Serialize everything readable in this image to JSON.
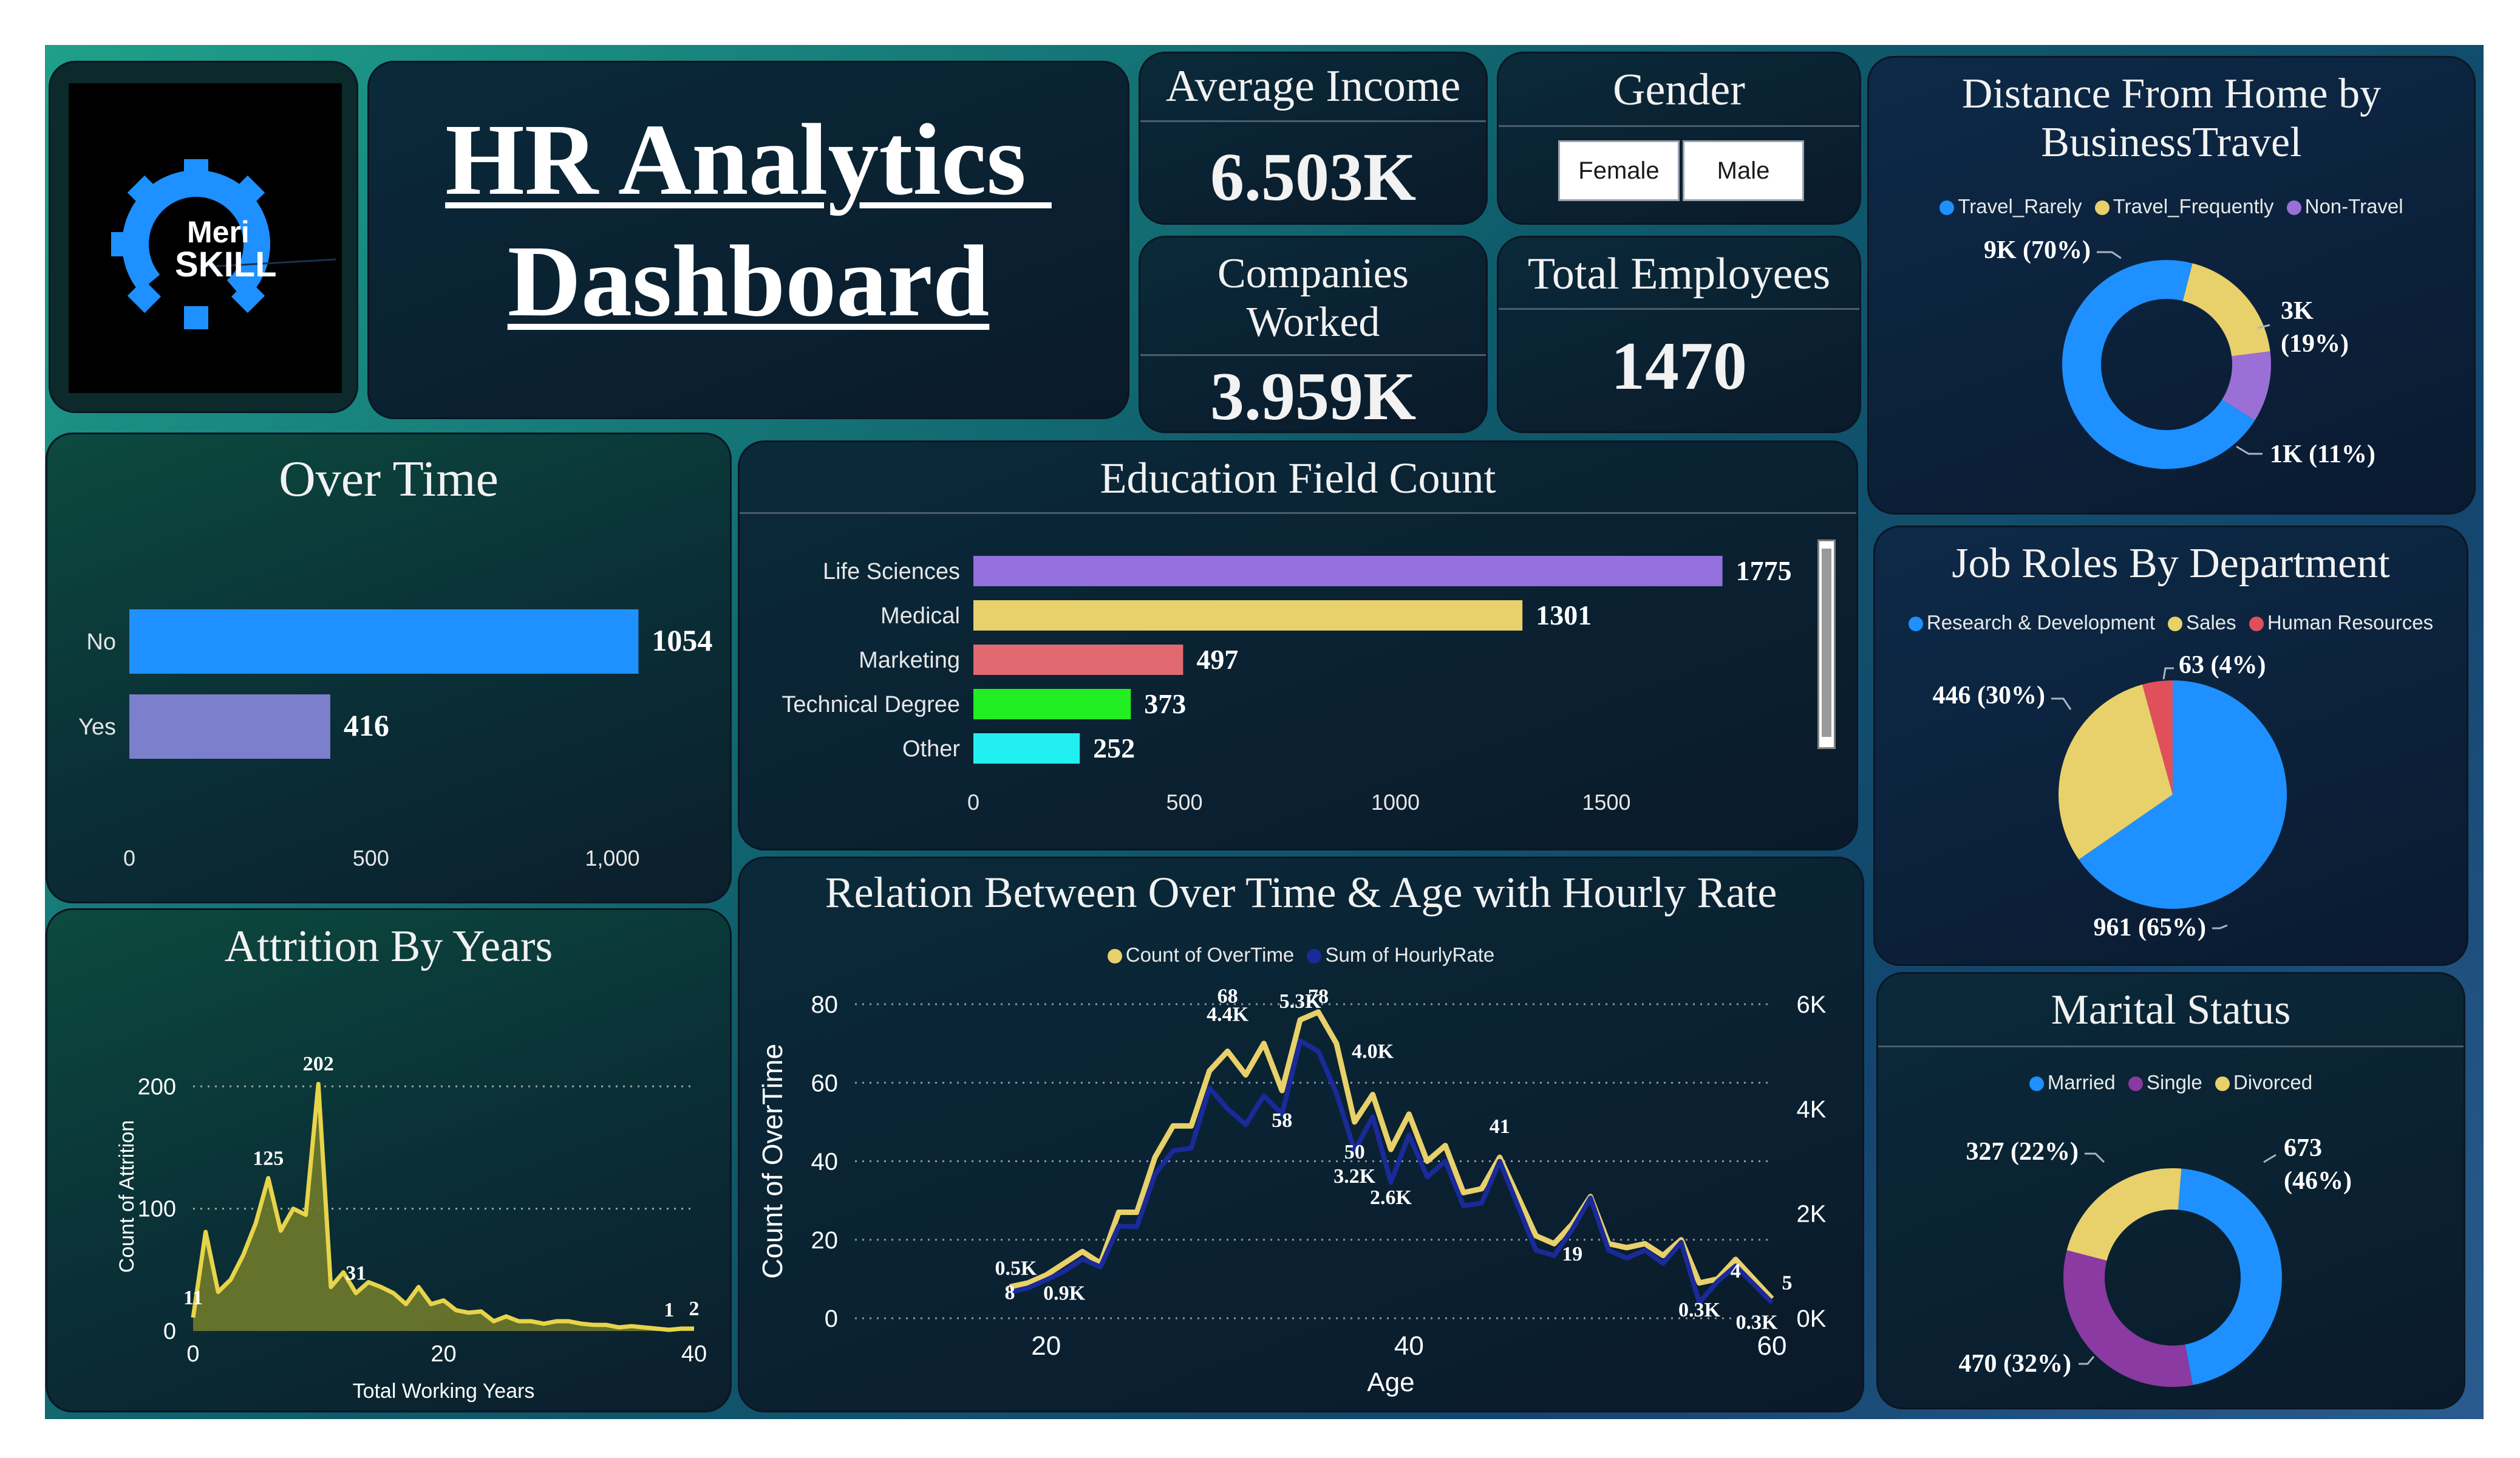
{
  "header": {
    "title_line1": "HR Analytics ",
    "title_line2": "Dashboard"
  },
  "logo": {
    "line1": "Meri",
    "line2": "SKILL"
  },
  "kpis": {
    "avg_income": {
      "label": "Average Income",
      "value": "6.503K"
    },
    "gender": {
      "label": "Gender",
      "options": [
        "Female",
        "Male"
      ]
    },
    "companies": {
      "label_line1": "Companies",
      "label_line2": "Worked",
      "value": "3.959K"
    },
    "employees": {
      "label": "Total Employees",
      "value": "1470"
    }
  },
  "colors": {
    "blue": "#1e90ff",
    "yellow": "#e8d06a",
    "purple": "#9a70d6",
    "red": "#e0505a",
    "navy": "#1a2a9a",
    "olive": "#6f7a2a"
  },
  "chart_data": [
    {
      "id": "overtime",
      "type": "bar",
      "orientation": "horizontal",
      "title": "Over Time",
      "categories": [
        "No",
        "Yes"
      ],
      "values": [
        1054,
        416
      ],
      "value_labels": [
        "1054",
        "416"
      ],
      "xlim": [
        0,
        1100
      ],
      "xticks": [
        0,
        500,
        1000
      ],
      "xtick_labels": [
        "0",
        "500",
        "1,000"
      ],
      "colors": [
        "#1e90ff",
        "#7b7fcc"
      ]
    },
    {
      "id": "education",
      "type": "bar",
      "orientation": "horizontal",
      "title": "Education Field Count",
      "categories": [
        "Life Sciences",
        "Medical",
        "Marketing",
        "Technical Degree",
        "Other"
      ],
      "values": [
        1775,
        1301,
        497,
        373,
        252
      ],
      "value_labels": [
        "1775",
        "1301",
        "497",
        "373",
        "252"
      ],
      "xlim": [
        0,
        2000
      ],
      "xticks": [
        0,
        500,
        1000,
        1500
      ],
      "xtick_labels": [
        "0",
        "500",
        "1000",
        "1500"
      ],
      "colors": [
        "#9370db",
        "#e8d06a",
        "#e06a70",
        "#22ee22",
        "#22f0f0"
      ]
    },
    {
      "id": "attrition",
      "type": "area",
      "title": "Attrition By Years",
      "xlabel": "Total Working Years",
      "ylabel": "Count of Attrition",
      "xlim": [
        0,
        40
      ],
      "ylim": [
        0,
        220
      ],
      "xticks": [
        0,
        20,
        40
      ],
      "xtick_labels": [
        "0",
        "20",
        "40"
      ],
      "yticks": [
        0,
        100,
        200
      ],
      "ytick_labels": [
        "0",
        "100",
        "200"
      ],
      "x": [
        0,
        1,
        2,
        3,
        4,
        5,
        6,
        7,
        8,
        9,
        10,
        11,
        12,
        13,
        14,
        15,
        16,
        17,
        18,
        19,
        20,
        21,
        22,
        23,
        24,
        25,
        26,
        27,
        28,
        29,
        30,
        31,
        32,
        33,
        34,
        35,
        36,
        37,
        38,
        39,
        40
      ],
      "values": [
        11,
        81,
        32,
        42,
        62,
        88,
        125,
        82,
        100,
        95,
        202,
        36,
        48,
        31,
        40,
        36,
        31,
        22,
        36,
        22,
        25,
        17,
        15,
        16,
        8,
        12,
        8,
        8,
        6,
        8,
        8,
        6,
        5,
        5,
        3,
        4,
        3,
        2,
        1,
        2,
        2
      ],
      "data_labels": [
        {
          "x": 0,
          "label": "11"
        },
        {
          "x": 6,
          "label": "125"
        },
        {
          "x": 10,
          "label": "202"
        },
        {
          "x": 13,
          "label": "31"
        },
        {
          "x": 38,
          "label": "1"
        },
        {
          "x": 40,
          "label": "2"
        }
      ]
    },
    {
      "id": "age_hourly",
      "type": "line",
      "title": "Relation Between Over Time & Age with Hourly Rate",
      "xlabel": "Age",
      "ylabel": "Count of OverTime",
      "xlim": [
        18,
        60
      ],
      "xticks": [
        20,
        40,
        60
      ],
      "xtick_labels": [
        "20",
        "40",
        "60"
      ],
      "ylim": [
        0,
        80
      ],
      "yticks": [
        0,
        20,
        40,
        60,
        80
      ],
      "ytick_labels": [
        "0",
        "20",
        "40",
        "60",
        "80"
      ],
      "y2lim": [
        0,
        6000
      ],
      "y2ticks": [
        0,
        2000,
        4000,
        6000
      ],
      "y2tick_labels": [
        "0K",
        "2K",
        "4K",
        "6K"
      ],
      "x": [
        18,
        19,
        20,
        21,
        22,
        23,
        24,
        25,
        26,
        27,
        28,
        29,
        30,
        31,
        32,
        33,
        34,
        35,
        36,
        37,
        38,
        39,
        40,
        41,
        42,
        43,
        44,
        45,
        46,
        47,
        48,
        49,
        50,
        51,
        52,
        53,
        54,
        55,
        56,
        57,
        58,
        59,
        60
      ],
      "series": [
        {
          "name": "Count of OverTime",
          "axis": "left",
          "color": "#e8d06a",
          "values": [
            8,
            9,
            11,
            14,
            17,
            14,
            27,
            27,
            41,
            49,
            49,
            63,
            68,
            62,
            70,
            58,
            76,
            78,
            70,
            50,
            57,
            43,
            52,
            40,
            44,
            32,
            33,
            41,
            31,
            21,
            19,
            24,
            31,
            19,
            18,
            19,
            16,
            20,
            9,
            10,
            15,
            10,
            5
          ]
        },
        {
          "name": "Sum of HourlyRate",
          "axis": "right",
          "color": "#1a2a9a",
          "values": [
            500,
            580,
            730,
            900,
            1130,
            980,
            1760,
            1750,
            2750,
            3200,
            3250,
            4400,
            4000,
            3700,
            4250,
            3900,
            5300,
            5100,
            4300,
            3200,
            3850,
            2600,
            3500,
            2700,
            3000,
            2150,
            2200,
            3000,
            2150,
            1300,
            1200,
            1700,
            2300,
            1300,
            1150,
            1300,
            1050,
            1450,
            300,
            700,
            1000,
            650,
            300
          ]
        }
      ],
      "data_labels": [
        {
          "x": 18,
          "label": "0.5K"
        },
        {
          "x": 18,
          "label": "8"
        },
        {
          "x": 21,
          "label": "0.9K"
        },
        {
          "x": 30,
          "label": "68"
        },
        {
          "x": 30,
          "label": "4.4K"
        },
        {
          "x": 34,
          "label": "5.3K"
        },
        {
          "x": 35,
          "label": "78"
        },
        {
          "x": 33,
          "label": "58"
        },
        {
          "x": 37,
          "label": "50"
        },
        {
          "x": 37,
          "label": "3.2K"
        },
        {
          "x": 38,
          "label": "4.0K"
        },
        {
          "x": 39,
          "label": "2.6K"
        },
        {
          "x": 45,
          "label": "41"
        },
        {
          "x": 49,
          "label": "19"
        },
        {
          "x": 56,
          "label": "0.3K"
        },
        {
          "x": 58,
          "label": "4"
        },
        {
          "x": 60,
          "label": "5"
        },
        {
          "x": 60,
          "label": "0.3K"
        }
      ]
    },
    {
      "id": "distance",
      "type": "pie",
      "donut": true,
      "title": "Distance From Home by BusinessTravel",
      "categories": [
        "Travel_Rarely",
        "Travel_Frequently",
        "Non-Travel"
      ],
      "values": [
        70,
        19,
        11
      ],
      "value_labels": [
        "9K (70%)",
        "3K (19%)",
        "1K (11%)"
      ],
      "colors": [
        "#1e90ff",
        "#e8d06a",
        "#9a70d6"
      ]
    },
    {
      "id": "jobroles",
      "type": "pie",
      "donut": false,
      "title": "Job Roles By Department",
      "categories": [
        "Research & Development",
        "Sales",
        "Human Resources"
      ],
      "values": [
        961,
        446,
        63
      ],
      "value_labels": [
        "961 (65%)",
        "446 (30%)",
        "63 (4%)"
      ],
      "colors": [
        "#1e90ff",
        "#e8d06a",
        "#e0505a"
      ]
    },
    {
      "id": "marital",
      "type": "pie",
      "donut": true,
      "title": "Marital Status",
      "categories": [
        "Married",
        "Single",
        "Divorced"
      ],
      "values": [
        673,
        470,
        327
      ],
      "value_labels": [
        "673 (46%)",
        "470 (32%)",
        "327 (22%)"
      ],
      "colors": [
        "#1e90ff",
        "#8a3aa0",
        "#e8d06a"
      ]
    }
  ]
}
